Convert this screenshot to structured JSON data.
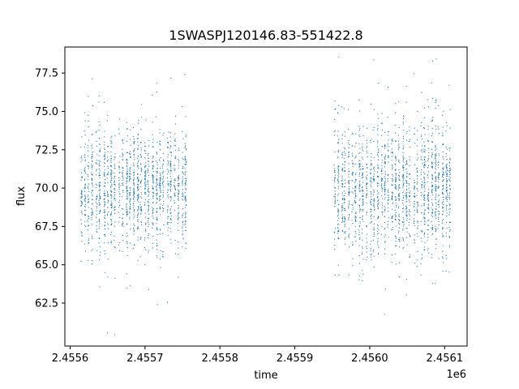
{
  "chart_data": {
    "type": "scatter",
    "title": "1SWASPJ120146.83-551422.8",
    "xlabel": "time",
    "ylabel": "flux",
    "x_offset_label": "1e6",
    "xlim": [
      2455593,
      2456130
    ],
    "ylim": [
      59.7,
      79.2
    ],
    "x_ticks": [
      2455600,
      2455700,
      2455800,
      2455900,
      2456000,
      2456100
    ],
    "x_tick_labels": [
      "2.4556",
      "2.4557",
      "2.4558",
      "2.4559",
      "2.4560",
      "2.4561"
    ],
    "y_ticks": [
      62.5,
      65.0,
      67.5,
      70.0,
      72.5,
      75.0,
      77.5
    ],
    "y_tick_labels": [
      "62.5",
      "65.0",
      "67.5",
      "70.0",
      "72.5",
      "75.0",
      "77.5"
    ],
    "grid": false,
    "marker_color": "#1f77b4",
    "series": [
      {
        "name": "",
        "clusters": [
          {
            "x_range": [
              2455615,
              2455755
            ],
            "center": 69.9,
            "spread": 1.9,
            "columns": 28
          },
          {
            "x_range": [
              2455953,
              2456107
            ],
            "center": 69.9,
            "spread": 2.1,
            "columns": 32
          }
        ]
      }
    ]
  }
}
